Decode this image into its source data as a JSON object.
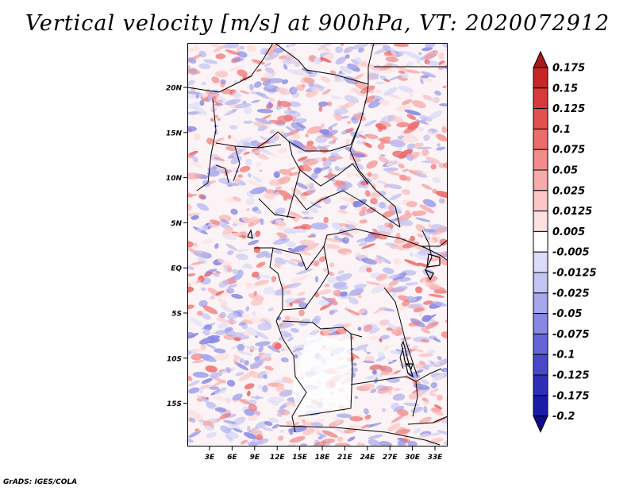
{
  "title": "Vertical velocity [m/s] at 900hPa, VT: 2020072912",
  "credit": "GrADS: IGES/COLA",
  "map": {
    "lon_labels": [
      "3E",
      "6E",
      "9E",
      "12E",
      "15E",
      "18E",
      "21E",
      "24E",
      "27E",
      "30E",
      "33E"
    ],
    "lat_labels": [
      "20N",
      "15N",
      "10N",
      "5N",
      "EQ",
      "5S",
      "10S",
      "15S"
    ]
  },
  "colorbar": {
    "labels": [
      "0.175",
      "0.15",
      "0.125",
      "0.1",
      "0.075",
      "0.05",
      "0.025",
      "0.0125",
      "0.005",
      "-0.005",
      "-0.0125",
      "-0.025",
      "-0.05",
      "-0.075",
      "-0.1",
      "-0.125",
      "-0.175",
      "-0.2"
    ],
    "colors": [
      "#ab1a1a",
      "#c62626",
      "#d63a3a",
      "#e25050",
      "#ec6c6c",
      "#f28c8c",
      "#f6aaaa",
      "#fac6c6",
      "#fde0e0",
      "#ffffff",
      "#dcdcf8",
      "#c4c4f2",
      "#a6a6ec",
      "#8888e4",
      "#6464d8",
      "#4848c8",
      "#2e2eb8",
      "#1c1ca6",
      "#0c0c8c"
    ]
  }
}
